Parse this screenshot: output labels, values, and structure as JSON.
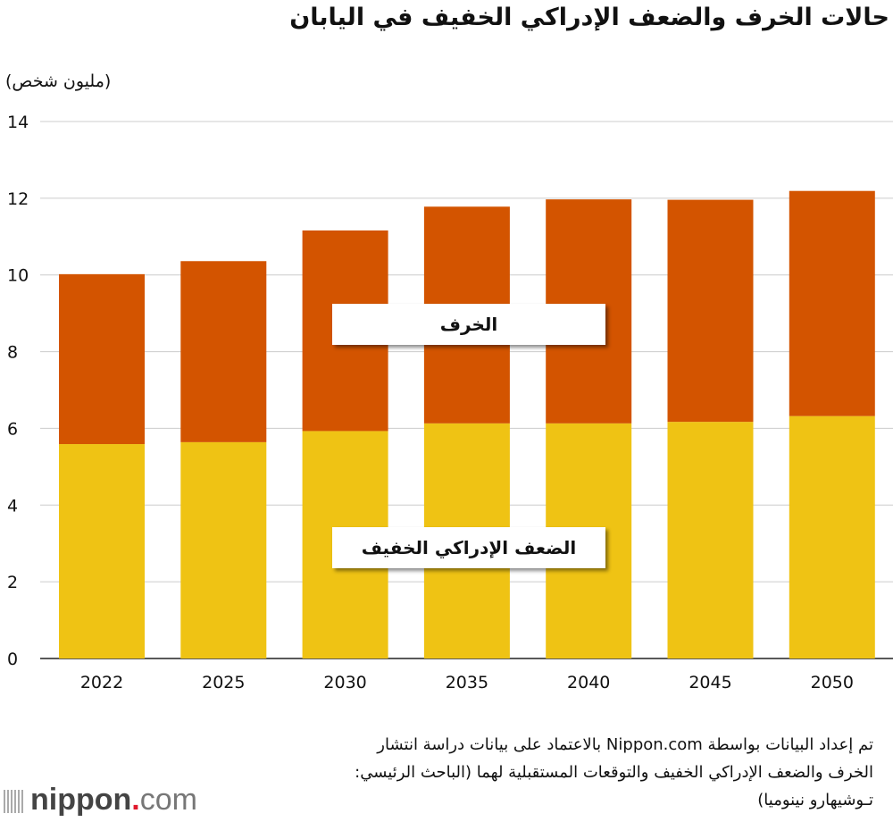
{
  "chart_data": {
    "type": "bar",
    "stacked": true,
    "title": "حالات الخرف والضعف الإدراكي الخفيف في اليابان",
    "ylabel": "(مليون شخص)",
    "xlabel": "",
    "categories": [
      "2022",
      "2025",
      "2030",
      "2035",
      "2040",
      "2045",
      "2050"
    ],
    "series": [
      {
        "name": "الضعف الإدراكي الخفيف",
        "color": "#efc314",
        "values": [
          5.59,
          5.64,
          5.93,
          6.13,
          6.13,
          6.17,
          6.32
        ]
      },
      {
        "name": "الخرف",
        "color": "#d35400",
        "values": [
          4.43,
          4.72,
          5.23,
          5.65,
          5.84,
          5.79,
          5.87
        ]
      }
    ],
    "ylim": [
      0,
      14
    ],
    "yticks": [
      0,
      2,
      4,
      6,
      8,
      10,
      12,
      14
    ],
    "grid": true,
    "legend": "inline labels on bars"
  },
  "source": [
    "تم إعداد البيانات بواسطة Nippon.com بالاعتماد على بيانات دراسة انتشار",
    "الخرف والضعف الإدراكي الخفيف والتوقعات المستقبلية لهما (الباحث الرئيسي:",
    "تـوشيهارو نينوميا)"
  ],
  "logo": {
    "text": "nippon.com",
    "accent": "#e0192c"
  }
}
